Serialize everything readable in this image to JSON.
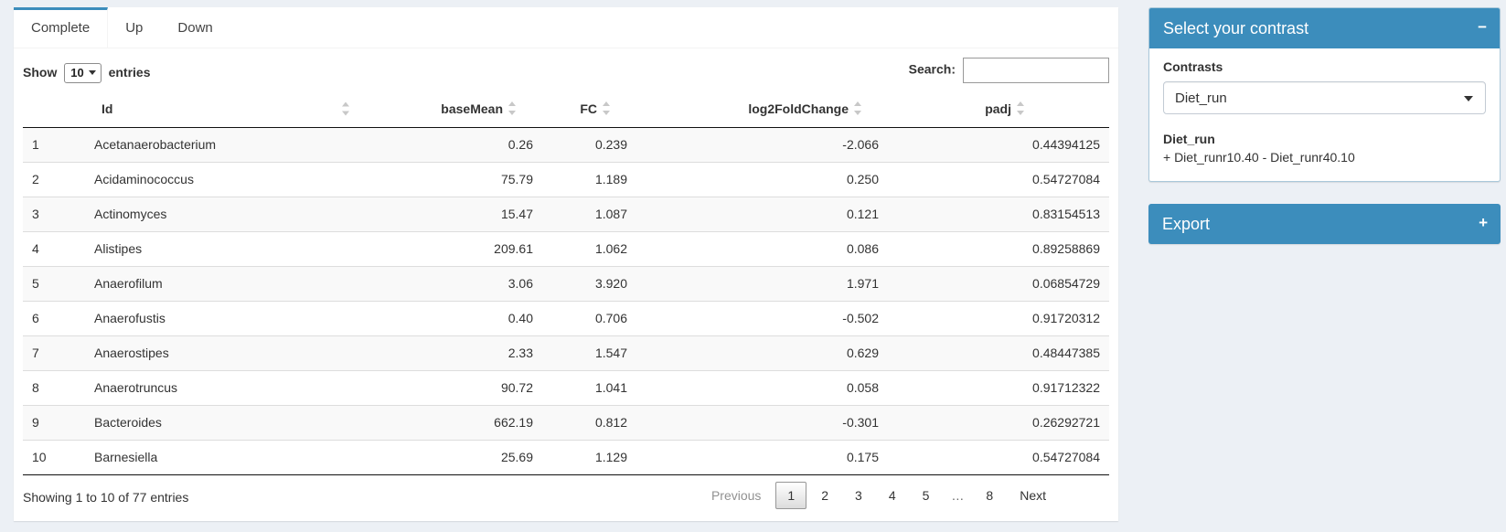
{
  "colors": {
    "accent": "#3c8dbc",
    "page_bg": "#ecf0f5"
  },
  "tabs": [
    {
      "label": "Complete",
      "active": true
    },
    {
      "label": "Up",
      "active": false
    },
    {
      "label": "Down",
      "active": false
    }
  ],
  "datatable": {
    "length": {
      "before": "Show",
      "value": "10",
      "after": "entries"
    },
    "search": {
      "label": "Search:",
      "value": ""
    },
    "columns": [
      "",
      "Id",
      "baseMean",
      "FC",
      "log2FoldChange",
      "padj"
    ],
    "rows": [
      [
        "1",
        "Acetanaerobacterium",
        "0.26",
        "0.239",
        "-2.066",
        "0.44394125"
      ],
      [
        "2",
        "Acidaminococcus",
        "75.79",
        "1.189",
        "0.250",
        "0.54727084"
      ],
      [
        "3",
        "Actinomyces",
        "15.47",
        "1.087",
        "0.121",
        "0.83154513"
      ],
      [
        "4",
        "Alistipes",
        "209.61",
        "1.062",
        "0.086",
        "0.89258869"
      ],
      [
        "5",
        "Anaerofilum",
        "3.06",
        "3.920",
        "1.971",
        "0.06854729"
      ],
      [
        "6",
        "Anaerofustis",
        "0.40",
        "0.706",
        "-0.502",
        "0.91720312"
      ],
      [
        "7",
        "Anaerostipes",
        "2.33",
        "1.547",
        "0.629",
        "0.48447385"
      ],
      [
        "8",
        "Anaerotruncus",
        "90.72",
        "1.041",
        "0.058",
        "0.91712322"
      ],
      [
        "9",
        "Bacteroides",
        "662.19",
        "0.812",
        "-0.301",
        "0.26292721"
      ],
      [
        "10",
        "Barnesiella",
        "25.69",
        "1.129",
        "0.175",
        "0.54727084"
      ]
    ],
    "info": "Showing 1 to 10 of 77 entries",
    "pagination": {
      "previous": "Previous",
      "pages": [
        "1",
        "2",
        "3",
        "4",
        "5",
        "…",
        "8"
      ],
      "current": "1",
      "next": "Next"
    }
  },
  "contrast_box": {
    "title": "Select your contrast",
    "collapse_icon": "−",
    "contrasts_label": "Contrasts",
    "selected_contrast": "Diet_run",
    "detail_name": "Diet_run",
    "detail_formula": "+ Diet_runr10.40 - Diet_runr40.10"
  },
  "export_box": {
    "title": "Export",
    "expand_icon": "+"
  }
}
